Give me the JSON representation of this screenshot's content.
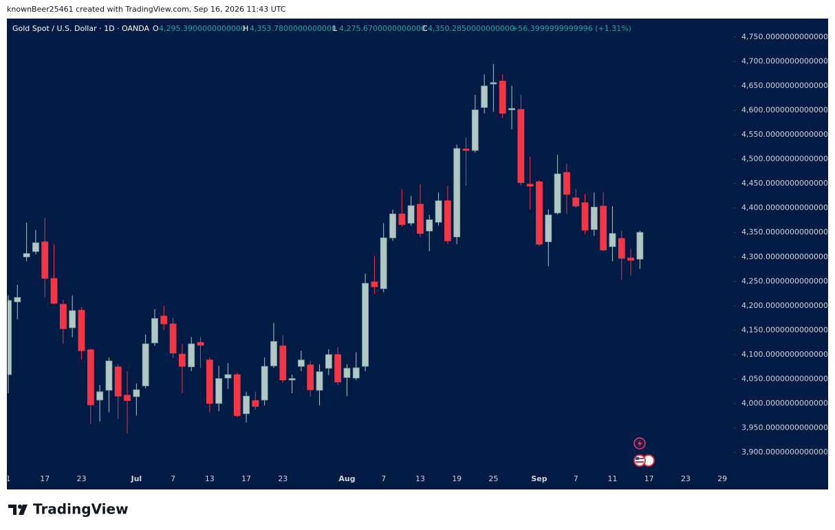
{
  "attribution": "knownBeer25461 created with TradingView.com, Sep 16, 2026 11:43 UTC",
  "chart_data": {
    "type": "candlestick",
    "title": "Gold Spot / U.S. Dollar · 1D · OANDA",
    "legend_values": [
      {
        "key": "O",
        "text": "4,295.3900000000000"
      },
      {
        "key": "H",
        "text": "4,353.7800000000000"
      },
      {
        "key": "L",
        "text": "4,275.6700000000000"
      },
      {
        "key": "C",
        "text": "4,350.2850000000000"
      }
    ],
    "change": "+56.3999999999996 (+1.31%)",
    "categories": [
      "1",
      null,
      null,
      null,
      "17",
      null,
      null,
      null,
      "23",
      null,
      null,
      null,
      null,
      null,
      "Jul",
      null,
      null,
      null,
      "7",
      null,
      null,
      null,
      "13",
      null,
      null,
      null,
      "17",
      null,
      null,
      null,
      "23",
      null,
      null,
      null,
      null,
      null,
      null,
      "Aug",
      null,
      null,
      null,
      "7",
      null,
      null,
      null,
      "13",
      null,
      null,
      null,
      "19",
      null,
      null,
      null,
      "25",
      null,
      null,
      null,
      null,
      "Sep",
      null,
      null,
      null,
      "7",
      null,
      null,
      null,
      "11",
      null,
      null,
      null,
      "17",
      null,
      null,
      null,
      "23",
      null,
      null,
      null,
      "29"
    ],
    "open": [
      4059,
      4208,
      4300,
      4311,
      4331,
      4256,
      4203,
      4155,
      4191,
      4110,
      4007,
      4027,
      4075,
      4017,
      4014,
      4036,
      4124,
      4179,
      4163,
      4101,
      4075,
      4125,
      4089,
      4000,
      4052,
      4059,
      3979,
      4006,
      4007,
      4077,
      4118,
      4048,
      4076,
      4079,
      4027,
      4072,
      4100,
      4053,
      4052,
      4076,
      4249,
      4235,
      4339,
      4388,
      4369,
      4408,
      4353,
      4371,
      4415,
      4341,
      4521,
      4518,
      4606,
      4654,
      4660,
      4601,
      4602,
      4449,
      4454,
      4331,
      4390,
      4473,
      4421,
      4411,
      4356,
      4404,
      4321,
      4338,
      4298,
      4295.39,
      null,
      null,
      null,
      null,
      null,
      null,
      null,
      null,
      null
    ],
    "high": [
      4221,
      4243,
      4370,
      4355,
      4380,
      4326,
      4212,
      4221,
      4197,
      4112,
      4038,
      4094,
      4080,
      4066,
      4041,
      4141,
      4193,
      4200,
      4176,
      4122,
      4136,
      4136,
      4094,
      4077,
      4083,
      4063,
      4024,
      4024,
      4094,
      4165,
      4139,
      4059,
      4108,
      4087,
      4080,
      4111,
      4115,
      4080,
      4105,
      4266,
      4302,
      4369,
      4397,
      4439,
      4425,
      4449,
      4386,
      4432,
      4446,
      4530,
      4545,
      4632,
      4674,
      4695,
      4674,
      4650,
      4632,
      4505,
      4457,
      4397,
      4509,
      4491,
      4439,
      4429,
      4432,
      4432,
      4404,
      4353,
      4317,
      4353.78,
      null,
      null,
      null,
      null,
      null,
      null,
      null,
      null,
      null
    ],
    "low": [
      4021,
      4172,
      4291,
      4305,
      4218,
      4203,
      4122,
      4136,
      4090,
      3958,
      3963,
      3982,
      3968,
      3939,
      3975,
      4031,
      4118,
      4150,
      4093,
      4021,
      4066,
      4073,
      3982,
      3984,
      4030,
      3972,
      3961,
      3987,
      3996,
      4073,
      4042,
      4021,
      4066,
      4014,
      3996,
      4058,
      4038,
      4015,
      4048,
      4066,
      4224,
      4228,
      4333,
      4362,
      4364,
      4341,
      4312,
      4364,
      4326,
      4326,
      4446,
      4514,
      4594,
      4597,
      4584,
      4561,
      4446,
      4397,
      4322,
      4281,
      4387,
      4388,
      4401,
      4346,
      4343,
      4312,
      4291,
      4253,
      4262,
      4275.67,
      null,
      null,
      null,
      null,
      null,
      null,
      null,
      null,
      null
    ],
    "close": [
      4211,
      4217,
      4307,
      4329,
      4256,
      4205,
      4153,
      4190,
      4108,
      3997,
      4024,
      4087,
      4015,
      4006,
      4028,
      4122,
      4174,
      4163,
      4103,
      4076,
      4122,
      4119,
      4000,
      4051,
      4059,
      3975,
      4015,
      3994,
      4076,
      4127,
      4048,
      4051,
      4089,
      4028,
      4065,
      4100,
      4044,
      4072,
      4073,
      4246,
      4239,
      4339,
      4388,
      4366,
      4405,
      4348,
      4376,
      4415,
      4333,
      4522,
      4518,
      4601,
      4650,
      4657,
      4594,
      4604,
      4452,
      4445,
      4326,
      4386,
      4470,
      4428,
      4404,
      4355,
      4402,
      4314,
      4348,
      4297,
      4293,
      4350.285,
      null,
      null,
      null,
      null,
      null,
      null,
      null,
      null,
      null
    ],
    "up_color": "#b4c6c4",
    "down_color": "#f23645",
    "ylim": [
      3826.8,
      4786.6
    ],
    "yticks": [
      {
        "value": 3900,
        "label": "3,900.0000000000000"
      },
      {
        "value": 3950,
        "label": "3,950.0000000000000"
      },
      {
        "value": 4000,
        "label": "4,000.0000000000000"
      },
      {
        "value": 4050,
        "label": "4,050.0000000000000"
      },
      {
        "value": 4100,
        "label": "4,100.0000000000000"
      },
      {
        "value": 4150,
        "label": "4,150.0000000000000"
      },
      {
        "value": 4200,
        "label": "4,200.0000000000000"
      },
      {
        "value": 4250,
        "label": "4,250.0000000000000"
      },
      {
        "value": 4300,
        "label": "4,300.0000000000000"
      },
      {
        "value": 4350,
        "label": "4,350.0000000000000"
      },
      {
        "value": 4400,
        "label": "4,400.0000000000000"
      },
      {
        "value": 4450,
        "label": "4,450.0000000000000"
      },
      {
        "value": 4500,
        "label": "4,500.0000000000000"
      },
      {
        "value": 4550,
        "label": "4,550.0000000000000"
      },
      {
        "value": 4600,
        "label": "4,600.0000000000000"
      },
      {
        "value": 4650,
        "label": "4,650.0000000000000"
      },
      {
        "value": 4700,
        "label": "4,700.0000000000000"
      },
      {
        "value": 4750,
        "label": "4,750.0000000000000"
      }
    ]
  },
  "brand": "TradingView"
}
